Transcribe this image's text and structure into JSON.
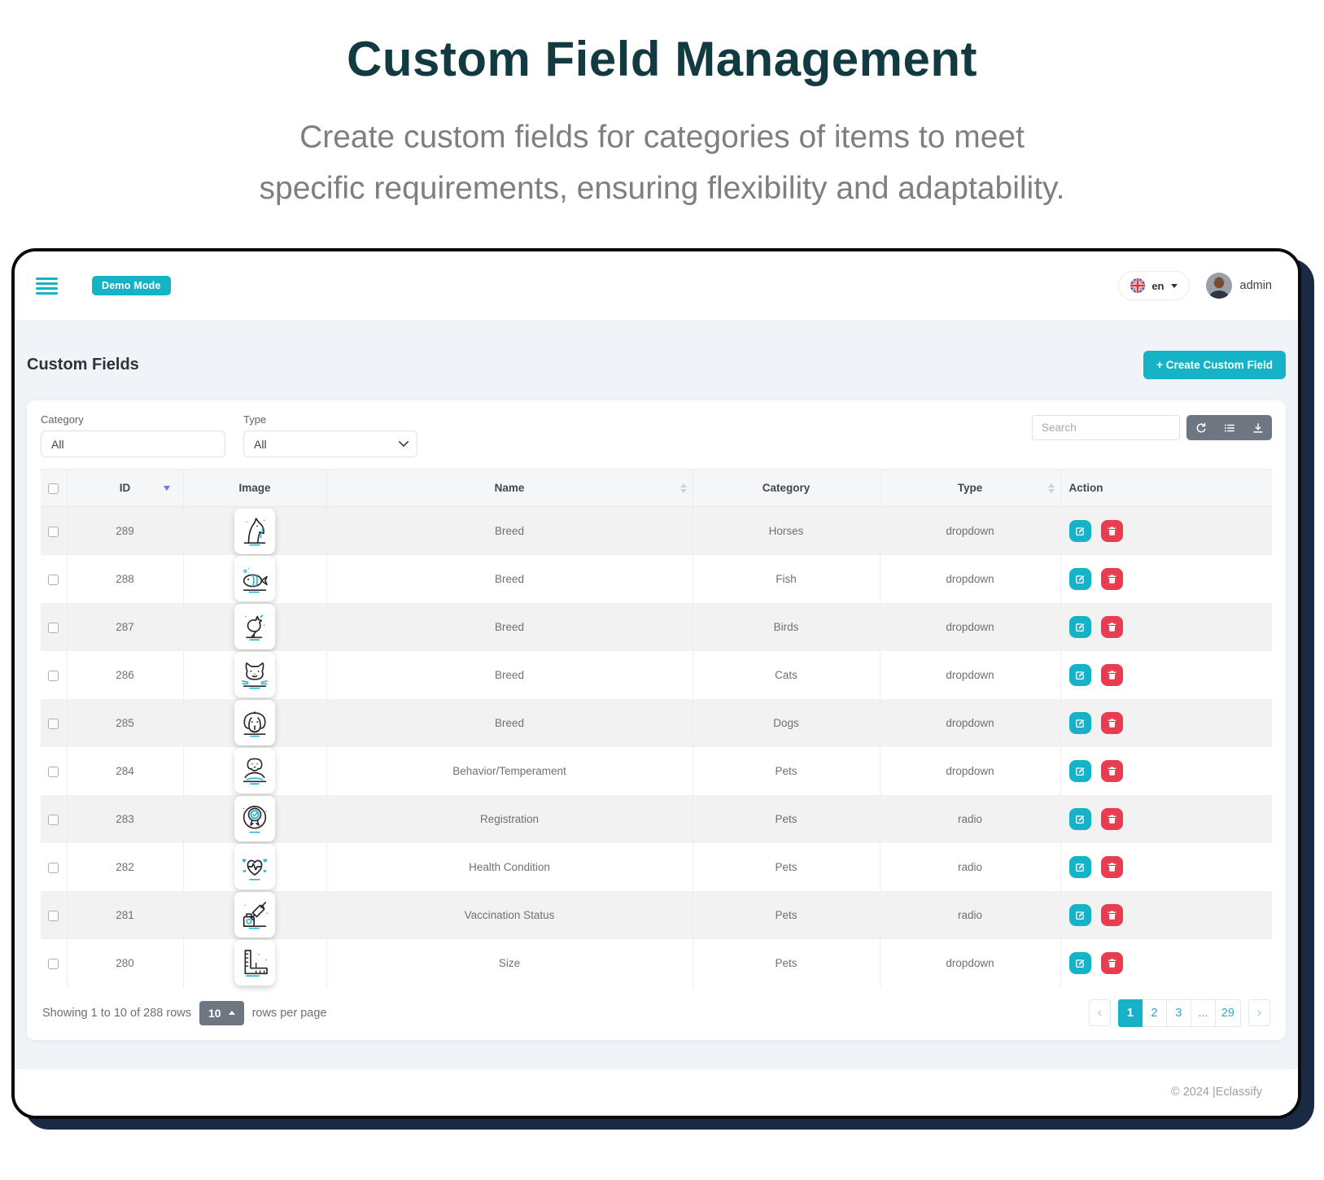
{
  "page": {
    "title": "Custom Field Management",
    "subtitle_lines": [
      "Create custom fields for categories of items to meet",
      "specific requirements, ensuring flexibility and adaptability."
    ]
  },
  "topbar": {
    "demo_badge": "Demo Mode",
    "language": "en",
    "user": "admin",
    "icons": [
      "hamburger-icon",
      "uk-flag-icon",
      "avatar"
    ]
  },
  "content": {
    "heading": "Custom Fields",
    "create_button": "+ Create Custom Field"
  },
  "filters": {
    "category_label": "Category",
    "category_value": "All",
    "type_label": "Type",
    "type_value": "All",
    "search_placeholder": "Search",
    "toolbar_icons": [
      "refresh-icon",
      "list-icon",
      "download-icon"
    ]
  },
  "table": {
    "columns": {
      "id": "ID",
      "image": "Image",
      "name": "Name",
      "category": "Category",
      "type": "Type",
      "action": "Action"
    },
    "sorted_by": "ID",
    "sort_direction": "desc",
    "rows": [
      {
        "id": "289",
        "icon": "horse-icon",
        "name": "Breed",
        "category": "Horses",
        "type": "dropdown"
      },
      {
        "id": "288",
        "icon": "fish-icon",
        "name": "Breed",
        "category": "Fish",
        "type": "dropdown"
      },
      {
        "id": "287",
        "icon": "bird-icon",
        "name": "Breed",
        "category": "Birds",
        "type": "dropdown"
      },
      {
        "id": "286",
        "icon": "cat-icon",
        "name": "Breed",
        "category": "Cats",
        "type": "dropdown"
      },
      {
        "id": "285",
        "icon": "dog-icon",
        "name": "Breed",
        "category": "Dogs",
        "type": "dropdown"
      },
      {
        "id": "284",
        "icon": "dog-hand-icon",
        "name": "Behavior/Temperament",
        "category": "Pets",
        "type": "dropdown"
      },
      {
        "id": "283",
        "icon": "rosette-icon",
        "name": "Registration",
        "category": "Pets",
        "type": "radio"
      },
      {
        "id": "282",
        "icon": "heart-ecg-icon",
        "name": "Health Condition",
        "category": "Pets",
        "type": "radio"
      },
      {
        "id": "281",
        "icon": "syringe-icon",
        "name": "Vaccination Status",
        "category": "Pets",
        "type": "radio"
      },
      {
        "id": "280",
        "icon": "ruler-icon",
        "name": "Size",
        "category": "Pets",
        "type": "dropdown"
      }
    ],
    "row_action_icons": [
      "edit-icon",
      "trash-icon"
    ]
  },
  "footer": {
    "showing_text": "Showing 1 to 10 of 288 rows",
    "page_size": "10",
    "rows_per_page_text": "rows per page",
    "pagination": {
      "prev": "‹",
      "next": "›",
      "pages": [
        "1",
        "2",
        "3",
        "...",
        "29"
      ],
      "active": "1"
    }
  },
  "window_footer": {
    "copyright": "© 2024 |Eclassify"
  },
  "colors": {
    "accent_cyan": "#16b3c8",
    "danger_red": "#e73c52",
    "heading_teal": "#123b41",
    "shadow_navy": "#1b2a44",
    "sort_indicator_purple": "#6a73e8",
    "page_background": "#f0f3f7"
  }
}
